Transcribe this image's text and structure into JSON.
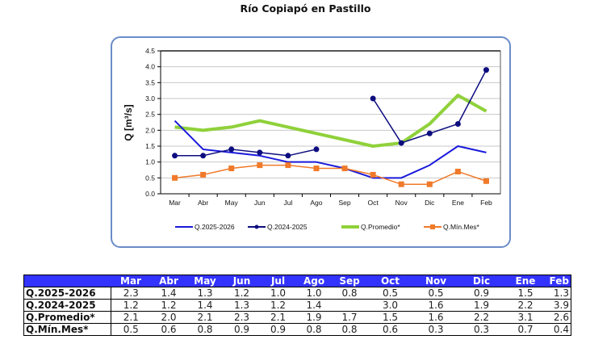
{
  "chart_data": {
    "type": "line",
    "title": "Río Copiapó en Pastillo",
    "xlabel": "",
    "ylabel": "Q [m³/s]",
    "ylim": [
      0,
      4.5
    ],
    "yticks": [
      "0.0",
      "0.5",
      "1.0",
      "1.5",
      "2.0",
      "2.5",
      "3.0",
      "3.5",
      "4.0",
      "4.5"
    ],
    "grid": true,
    "legend_position": "bottom",
    "categories": [
      "Mar",
      "Abr",
      "May",
      "Jun",
      "Jul",
      "Ago",
      "Sep",
      "Oct",
      "Nov",
      "Dic",
      "Ene",
      "Feb"
    ],
    "series": [
      {
        "name": "Q.2025-2026",
        "color": "#1a1adb",
        "marker": "none",
        "values": [
          2.3,
          1.4,
          1.3,
          1.2,
          1.0,
          1.0,
          0.8,
          0.5,
          0.5,
          0.9,
          1.5,
          1.3
        ]
      },
      {
        "name": "Q.2024-2025",
        "color": "#0d0d80",
        "marker": "circle",
        "values": [
          1.2,
          1.2,
          1.4,
          1.3,
          1.2,
          1.4,
          null,
          3.0,
          1.6,
          1.9,
          2.2,
          3.9
        ]
      },
      {
        "name": "Q.Promedio*",
        "color": "#8fd13a",
        "marker": "none",
        "values": [
          2.1,
          2.0,
          2.1,
          2.3,
          2.1,
          1.9,
          1.7,
          1.5,
          1.6,
          2.2,
          3.1,
          2.6
        ]
      },
      {
        "name": "Q.Mín.Mes*",
        "color": "#f07a2a",
        "marker": "square",
        "values": [
          0.5,
          0.6,
          0.8,
          0.9,
          0.9,
          0.8,
          0.8,
          0.6,
          0.3,
          0.3,
          0.7,
          0.4
        ]
      }
    ]
  },
  "table": {
    "headers": [
      "",
      "Mar",
      "Abr",
      "May",
      "Jun",
      "Jul",
      "Ago",
      "Sep",
      "Oct",
      "Nov",
      "Dic",
      "Ene",
      "Feb"
    ],
    "rows": [
      {
        "label": "Q.2025-2026",
        "values": [
          "2.3",
          "1.4",
          "1.3",
          "1.2",
          "1.0",
          "1.0",
          "0.8",
          "0.5",
          "0.5",
          "0.9",
          "1.5",
          "1.3"
        ]
      },
      {
        "label": "Q.2024-2025",
        "values": [
          "1.2",
          "1.2",
          "1.4",
          "1.3",
          "1.2",
          "1.4",
          "",
          "3.0",
          "1.6",
          "1.9",
          "2.2",
          "3.9"
        ]
      },
      {
        "label": "Q.Promedio*",
        "values": [
          "2.1",
          "2.0",
          "2.1",
          "2.3",
          "2.1",
          "1.9",
          "1.7",
          "1.5",
          "1.6",
          "2.2",
          "3.1",
          "2.6"
        ]
      },
      {
        "label": "Q.Mín.Mes*",
        "values": [
          "0.5",
          "0.6",
          "0.8",
          "0.9",
          "0.9",
          "0.8",
          "0.8",
          "0.6",
          "0.3",
          "0.3",
          "0.7",
          "0.4"
        ]
      }
    ]
  }
}
